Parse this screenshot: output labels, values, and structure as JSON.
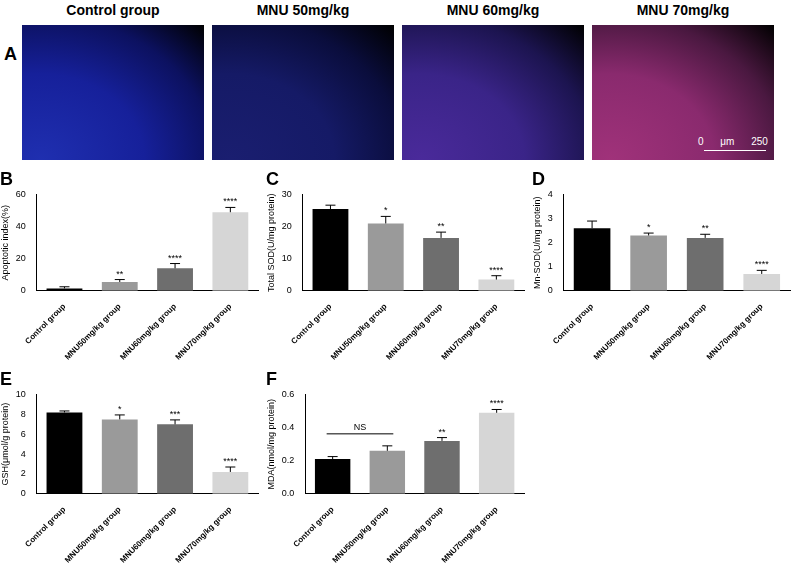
{
  "panel_a": {
    "title": "A",
    "images": [
      "Control group",
      "MNU 50mg/kg",
      "MNU 60mg/kg",
      "MNU 70mg/kg"
    ],
    "scale_bar": "0 μm 250"
  },
  "chart_data": [
    {
      "type": "bar",
      "title": "B",
      "y_label": "Apoptotic index(%)",
      "categories": [
        "Control group",
        "MNU50mg/kg group",
        "MNU60mg/kg group",
        "MNU70mg/kg group"
      ],
      "values": [
        1.5,
        5.5,
        14,
        49
      ],
      "errors": [
        1,
        1.5,
        3,
        3
      ],
      "annotations": [
        null,
        "**",
        "****",
        "****"
      ],
      "colors": [
        "#000000",
        "#9a9a9a",
        "#6e6e6e",
        "#d6d6d6"
      ],
      "ylim": [
        0,
        60
      ],
      "yticks": [
        0,
        20,
        40,
        60
      ],
      "grid": false
    },
    {
      "type": "bar",
      "title": "C",
      "y_label": "Total SOD(U/mg protein)",
      "categories": [
        "Control group",
        "MNU50mg/kg group",
        "MNU60mg/kg group",
        "MNU70mg/kg group"
      ],
      "values": [
        25.5,
        21,
        16.5,
        3.5
      ],
      "errors": [
        1.2,
        2.2,
        1.8,
        1.2
      ],
      "annotations": [
        null,
        "*",
        "**",
        "****"
      ],
      "colors": [
        "#000000",
        "#9a9a9a",
        "#6e6e6e",
        "#d6d6d6"
      ],
      "ylim": [
        0,
        30
      ],
      "yticks": [
        0,
        10,
        20,
        30
      ],
      "grid": false
    },
    {
      "type": "bar",
      "title": "D",
      "y_label": "Mn-SOD(U/mg protein)",
      "categories": [
        "Control group",
        "MNU50mg/kg group",
        "MNU60mg/kg group",
        "MNU70mg/kg group"
      ],
      "values": [
        2.6,
        2.3,
        2.2,
        0.7
      ],
      "errors": [
        0.3,
        0.1,
        0.15,
        0.15
      ],
      "annotations": [
        null,
        "*",
        "**",
        "****"
      ],
      "colors": [
        "#000000",
        "#9a9a9a",
        "#6e6e6e",
        "#d6d6d6"
      ],
      "ylim": [
        0,
        4
      ],
      "yticks": [
        0,
        1,
        2,
        3,
        4
      ],
      "grid": false
    },
    {
      "type": "bar",
      "title": "E",
      "y_label": "GSH(μmol/g protein)",
      "categories": [
        "Control group",
        "MNU50mg/kg group",
        "MNU60mg/kg group",
        "MNU70mg/kg group"
      ],
      "values": [
        8.2,
        7.5,
        7.0,
        2.2
      ],
      "errors": [
        0.15,
        0.45,
        0.45,
        0.5
      ],
      "annotations": [
        null,
        "*",
        "***",
        "****"
      ],
      "colors": [
        "#000000",
        "#9a9a9a",
        "#6e6e6e",
        "#d6d6d6"
      ],
      "ylim": [
        0,
        10
      ],
      "yticks": [
        0,
        2,
        4,
        6,
        8,
        10
      ],
      "grid": false
    },
    {
      "type": "bar",
      "title": "F",
      "y_label": "MDA(nmol/mg protein)",
      "categories": [
        "Control group",
        "MNU50mg/kg group",
        "MNU60mg/kg group",
        "MNU70mg/kg group"
      ],
      "values": [
        0.21,
        0.26,
        0.32,
        0.49
      ],
      "errors": [
        0.015,
        0.03,
        0.02,
        0.02
      ],
      "annotations": [
        null,
        null,
        "**",
        "****"
      ],
      "bracket": {
        "label": "NS",
        "from": 0,
        "to": 1
      },
      "colors": [
        "#000000",
        "#9a9a9a",
        "#6e6e6e",
        "#d6d6d6"
      ],
      "ylim": [
        0,
        0.6
      ],
      "yticks": [
        {
          "value": 0,
          "label": "0.0"
        },
        0.2,
        0.4,
        0.6
      ],
      "grid": false
    }
  ]
}
